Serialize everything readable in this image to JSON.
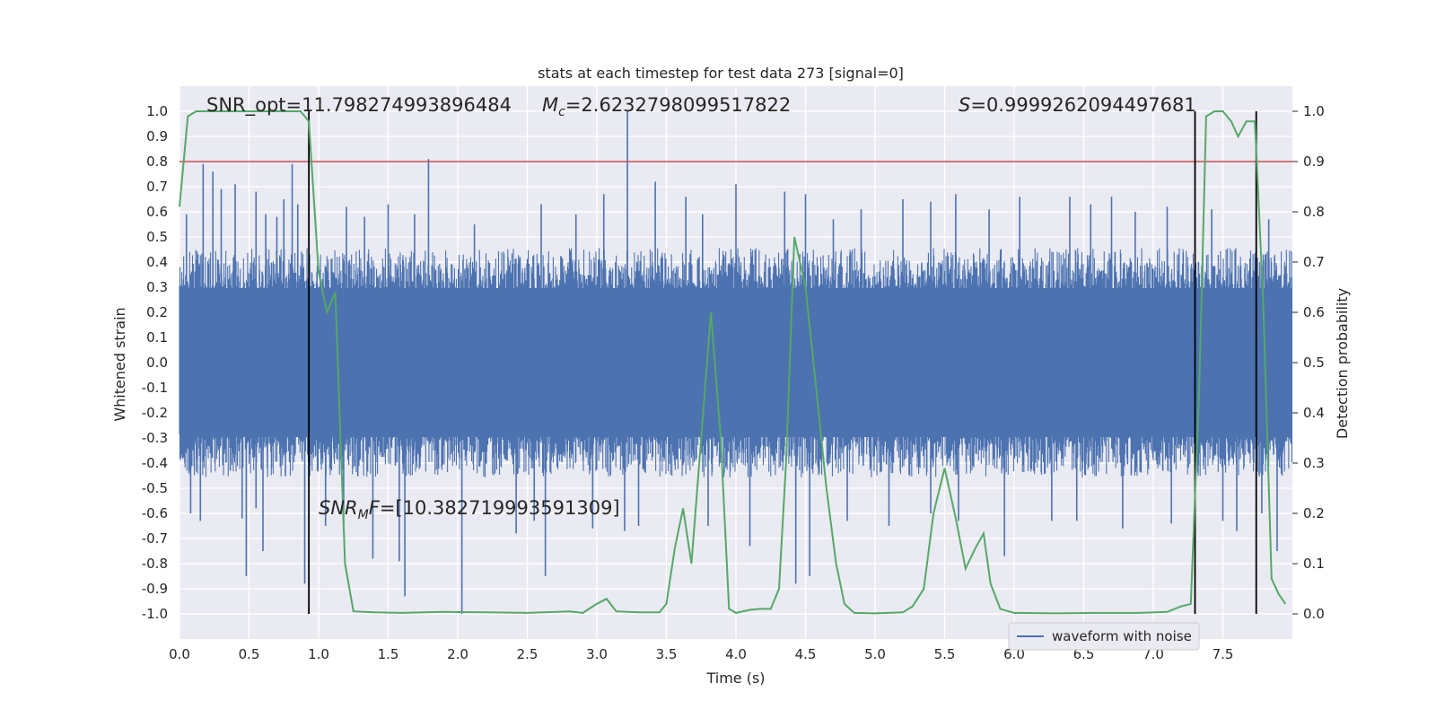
{
  "chart_data": {
    "type": "line",
    "title": "stats at each timestep for test data 273 [signal=0]",
    "xlabel": "Time (s)",
    "ylabel": "Whitened strain",
    "ylabel_right": "Detection probability",
    "xlim": [
      0.0,
      8.0
    ],
    "ylim": [
      -1.1,
      1.1
    ],
    "ylim_right": [
      -0.05,
      1.05
    ],
    "x_ticks": [
      "0.0",
      "0.5",
      "1.0",
      "1.5",
      "2.0",
      "2.5",
      "3.0",
      "3.5",
      "4.0",
      "4.5",
      "5.0",
      "5.5",
      "6.0",
      "6.5",
      "7.0",
      "7.5"
    ],
    "y_ticks": [
      "1.0",
      "0.9",
      "0.8",
      "0.7",
      "0.6",
      "0.5",
      "0.4",
      "0.3",
      "0.2",
      "0.1",
      "0.0",
      "-0.1",
      "-0.2",
      "-0.3",
      "-0.4",
      "-0.5",
      "-0.6",
      "-0.7",
      "-0.8",
      "-0.9",
      "-1.0"
    ],
    "y_right_ticks": [
      "1.0",
      "0.9",
      "0.8",
      "0.7",
      "0.6",
      "0.5",
      "0.4",
      "0.3",
      "0.2",
      "0.1",
      "0.0"
    ],
    "grid": true,
    "legend": {
      "position": "lower-right",
      "entries": [
        "waveform with noise"
      ]
    },
    "annotations": {
      "snr_opt": "SNR_opt=11.798274993896484",
      "mc_symbol": "M",
      "mc_sub": "c",
      "mc_value": "=2.6232798099517822",
      "s_symbol": "S",
      "s_value": "=0.9999262094497681",
      "snr_mf_symbol": "SNR",
      "snr_mf_sub": "M",
      "snr_mf_f": "F",
      "snr_mf_value": "=[10.382719993591309]"
    },
    "threshold_line": {
      "y_right": 0.9,
      "color": "#c44e52"
    },
    "vertical_lines": [
      0.93,
      7.3,
      7.74
    ],
    "waveform": {
      "name": "waveform with noise",
      "color": "#4c72b0",
      "typical_amplitude": 0.38,
      "peak_positive": [
        {
          "x": 0.05,
          "y": 0.59
        },
        {
          "x": 0.17,
          "y": 0.79
        },
        {
          "x": 0.24,
          "y": 0.76
        },
        {
          "x": 0.3,
          "y": 0.69
        },
        {
          "x": 0.4,
          "y": 0.71
        },
        {
          "x": 0.55,
          "y": 0.68
        },
        {
          "x": 0.62,
          "y": 0.59
        },
        {
          "x": 0.7,
          "y": 0.58
        },
        {
          "x": 0.75,
          "y": 0.65
        },
        {
          "x": 0.81,
          "y": 0.79
        },
        {
          "x": 0.85,
          "y": 0.63
        },
        {
          "x": 1.2,
          "y": 0.62
        },
        {
          "x": 1.33,
          "y": 0.58
        },
        {
          "x": 1.5,
          "y": 0.63
        },
        {
          "x": 1.69,
          "y": 0.59
        },
        {
          "x": 1.79,
          "y": 0.81
        },
        {
          "x": 2.12,
          "y": 0.55
        },
        {
          "x": 2.6,
          "y": 0.63
        },
        {
          "x": 2.85,
          "y": 0.59
        },
        {
          "x": 3.05,
          "y": 0.67
        },
        {
          "x": 3.22,
          "y": 1.0
        },
        {
          "x": 3.42,
          "y": 0.72
        },
        {
          "x": 3.64,
          "y": 0.66
        },
        {
          "x": 3.76,
          "y": 0.59
        },
        {
          "x": 4.0,
          "y": 0.71
        },
        {
          "x": 4.35,
          "y": 0.68
        },
        {
          "x": 4.5,
          "y": 0.67
        },
        {
          "x": 4.7,
          "y": 0.57
        },
        {
          "x": 4.9,
          "y": 0.61
        },
        {
          "x": 5.2,
          "y": 0.65
        },
        {
          "x": 5.4,
          "y": 0.64
        },
        {
          "x": 5.58,
          "y": 0.67
        },
        {
          "x": 5.82,
          "y": 0.61
        },
        {
          "x": 6.04,
          "y": 0.66
        },
        {
          "x": 6.4,
          "y": 0.66
        },
        {
          "x": 6.55,
          "y": 0.63
        },
        {
          "x": 6.7,
          "y": 0.66
        },
        {
          "x": 6.87,
          "y": 0.6
        },
        {
          "x": 7.1,
          "y": 0.62
        },
        {
          "x": 7.42,
          "y": 0.61
        },
        {
          "x": 7.83,
          "y": 0.57
        }
      ],
      "peak_negative": [
        {
          "x": 0.08,
          "y": -0.6
        },
        {
          "x": 0.15,
          "y": -0.63
        },
        {
          "x": 0.45,
          "y": -0.62
        },
        {
          "x": 0.48,
          "y": -0.85
        },
        {
          "x": 0.55,
          "y": -0.58
        },
        {
          "x": 0.6,
          "y": -0.75
        },
        {
          "x": 0.9,
          "y": -0.88
        },
        {
          "x": 1.05,
          "y": -0.65
        },
        {
          "x": 1.18,
          "y": -0.65
        },
        {
          "x": 1.39,
          "y": -0.78
        },
        {
          "x": 1.58,
          "y": -0.79
        },
        {
          "x": 1.62,
          "y": -0.93
        },
        {
          "x": 2.03,
          "y": -1.0
        },
        {
          "x": 2.42,
          "y": -0.68
        },
        {
          "x": 2.55,
          "y": -0.63
        },
        {
          "x": 2.63,
          "y": -0.85
        },
        {
          "x": 2.97,
          "y": -0.66
        },
        {
          "x": 3.2,
          "y": -0.67
        },
        {
          "x": 3.3,
          "y": -0.65
        },
        {
          "x": 3.8,
          "y": -0.65
        },
        {
          "x": 4.1,
          "y": -0.73
        },
        {
          "x": 4.43,
          "y": -0.88
        },
        {
          "x": 4.53,
          "y": -0.85
        },
        {
          "x": 4.8,
          "y": -0.63
        },
        {
          "x": 5.1,
          "y": -0.65
        },
        {
          "x": 5.4,
          "y": -0.6
        },
        {
          "x": 5.6,
          "y": -0.63
        },
        {
          "x": 5.93,
          "y": -0.77
        },
        {
          "x": 6.27,
          "y": -0.63
        },
        {
          "x": 6.45,
          "y": -0.63
        },
        {
          "x": 6.78,
          "y": -0.66
        },
        {
          "x": 7.13,
          "y": -0.64
        },
        {
          "x": 7.5,
          "y": -0.63
        },
        {
          "x": 7.6,
          "y": -0.67
        },
        {
          "x": 7.78,
          "y": -0.6
        },
        {
          "x": 7.89,
          "y": -0.75
        }
      ]
    },
    "probability": {
      "name": "Detection probability",
      "color": "#55a868",
      "points": [
        [
          0.0,
          0.81
        ],
        [
          0.06,
          0.99
        ],
        [
          0.12,
          1.0
        ],
        [
          0.2,
          1.0
        ],
        [
          0.3,
          1.0
        ],
        [
          0.5,
          1.0
        ],
        [
          0.7,
          1.0
        ],
        [
          0.87,
          1.0
        ],
        [
          0.93,
          0.98
        ],
        [
          1.0,
          0.68
        ],
        [
          1.06,
          0.6
        ],
        [
          1.12,
          0.64
        ],
        [
          1.19,
          0.1
        ],
        [
          1.25,
          0.005
        ],
        [
          1.4,
          0.003
        ],
        [
          1.6,
          0.002
        ],
        [
          1.9,
          0.004
        ],
        [
          2.2,
          0.003
        ],
        [
          2.5,
          0.002
        ],
        [
          2.8,
          0.005
        ],
        [
          2.9,
          0.002
        ],
        [
          3.0,
          0.02
        ],
        [
          3.07,
          0.03
        ],
        [
          3.14,
          0.005
        ],
        [
          3.3,
          0.003
        ],
        [
          3.45,
          0.003
        ],
        [
          3.5,
          0.02
        ],
        [
          3.56,
          0.13
        ],
        [
          3.62,
          0.21
        ],
        [
          3.68,
          0.1
        ],
        [
          3.75,
          0.35
        ],
        [
          3.82,
          0.6
        ],
        [
          3.89,
          0.35
        ],
        [
          3.95,
          0.01
        ],
        [
          4.0,
          0.002
        ],
        [
          4.1,
          0.008
        ],
        [
          4.18,
          0.01
        ],
        [
          4.25,
          0.01
        ],
        [
          4.31,
          0.05
        ],
        [
          4.36,
          0.3
        ],
        [
          4.42,
          0.75
        ],
        [
          4.5,
          0.65
        ],
        [
          4.58,
          0.44
        ],
        [
          4.65,
          0.25
        ],
        [
          4.72,
          0.1
        ],
        [
          4.78,
          0.02
        ],
        [
          4.85,
          0.002
        ],
        [
          5.0,
          0.001
        ],
        [
          5.2,
          0.003
        ],
        [
          5.27,
          0.015
        ],
        [
          5.35,
          0.05
        ],
        [
          5.42,
          0.2
        ],
        [
          5.5,
          0.29
        ],
        [
          5.58,
          0.19
        ],
        [
          5.65,
          0.09
        ],
        [
          5.72,
          0.13
        ],
        [
          5.78,
          0.16
        ],
        [
          5.83,
          0.06
        ],
        [
          5.9,
          0.01
        ],
        [
          6.0,
          0.002
        ],
        [
          6.3,
          0.001
        ],
        [
          6.6,
          0.002
        ],
        [
          6.9,
          0.002
        ],
        [
          7.1,
          0.004
        ],
        [
          7.2,
          0.015
        ],
        [
          7.27,
          0.02
        ],
        [
          7.33,
          0.45
        ],
        [
          7.38,
          0.99
        ],
        [
          7.44,
          1.0
        ],
        [
          7.5,
          1.0
        ],
        [
          7.56,
          0.98
        ],
        [
          7.61,
          0.95
        ],
        [
          7.67,
          0.98
        ],
        [
          7.73,
          0.98
        ],
        [
          7.79,
          0.62
        ],
        [
          7.85,
          0.07
        ],
        [
          7.9,
          0.04
        ],
        [
          7.95,
          0.02
        ]
      ]
    }
  }
}
